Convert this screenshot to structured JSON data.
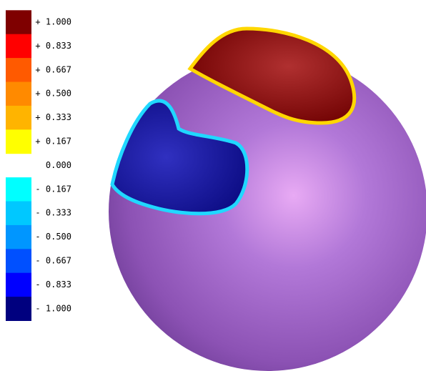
{
  "legend": {
    "entries": [
      {
        "label": "+ 1.000",
        "color": "#7f0000"
      },
      {
        "label": "+ 0.833",
        "color": "#ff0000"
      },
      {
        "label": "+ 0.667",
        "color": "#ff5a00"
      },
      {
        "label": "+ 0.500",
        "color": "#ff8a00"
      },
      {
        "label": "+ 0.333",
        "color": "#ffb400"
      },
      {
        "label": "+ 0.167",
        "color": "#ffff00"
      },
      {
        "label": "0.000"
      },
      {
        "label": "- 0.167",
        "color": "#00ffff"
      },
      {
        "label": "- 0.333",
        "color": "#00c8ff"
      },
      {
        "label": "- 0.500",
        "color": "#0096ff"
      },
      {
        "label": "- 0.667",
        "color": "#0050ff"
      },
      {
        "label": "- 0.833",
        "color": "#0000ff"
      },
      {
        "label": "- 1.000",
        "color": "#00007f"
      }
    ]
  }
}
